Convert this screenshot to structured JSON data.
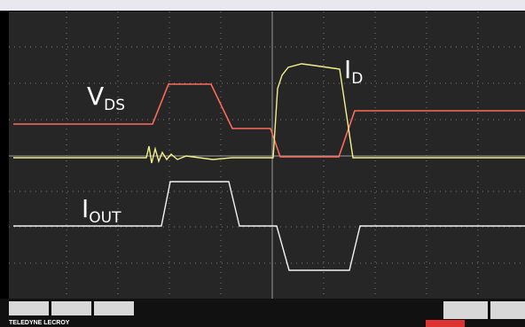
{
  "labels": [
    {
      "main": "V",
      "sub": "DS"
    },
    {
      "main": "I",
      "sub": "D"
    },
    {
      "main": "I",
      "sub": "OUT"
    }
  ],
  "brand": "TELEDYNE LECROY"
}
